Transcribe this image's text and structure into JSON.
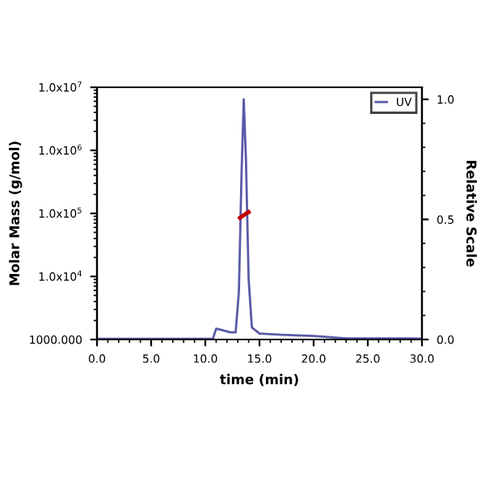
{
  "chart_data": {
    "type": "line",
    "xlabel": "time (min)",
    "ylabel": "Molar Mass (g/mol)",
    "y2label": "Relative Scale",
    "xlim": [
      0,
      30
    ],
    "xticks": [
      {
        "value": 0,
        "label": "0.0"
      },
      {
        "value": 5,
        "label": "5.0"
      },
      {
        "value": 10,
        "label": "10.0"
      },
      {
        "value": 15,
        "label": "15.0"
      },
      {
        "value": 20,
        "label": "20.0"
      },
      {
        "value": 25,
        "label": "25.0"
      },
      {
        "value": 30,
        "label": "30.0"
      }
    ],
    "log": "y",
    "ylim": [
      1000,
      10000000
    ],
    "yticks": [
      {
        "value": 1000,
        "label": "1000.000"
      },
      {
        "value": 10000,
        "label": "1.0x10$^{4}$"
      },
      {
        "value": 100000,
        "label": "1.0x10$^{5}$"
      },
      {
        "value": 1000000,
        "label": "1.0x10$^{6}$"
      },
      {
        "value": 10000000,
        "label": "1.0x10$^{7}$"
      }
    ],
    "y2lim": [
      0,
      1.05
    ],
    "y2ticks": [
      {
        "value": 0,
        "label": "0.0"
      },
      {
        "value": 0.5,
        "label": "0.5"
      },
      {
        "value": 1,
        "label": "1.0"
      }
    ],
    "grid": false,
    "legend": "top right",
    "marker": "none",
    "line_style": "solid",
    "series": [
      {
        "name": "UV",
        "color": "#5a5aa8",
        "axis": "y2",
        "x": [
          0,
          10.7,
          11.0,
          11.5,
          12.3,
          12.8,
          13.1,
          13.35,
          13.55,
          13.75,
          14.0,
          14.3,
          15,
          17,
          20,
          23,
          25,
          30
        ],
        "values": [
          0.003,
          0.003,
          0.045,
          0.04,
          0.03,
          0.03,
          0.2,
          0.7,
          1.0,
          0.75,
          0.25,
          0.05,
          0.025,
          0.02,
          0.015,
          0.005,
          0.005,
          0.004
        ]
      },
      {
        "color": "#c00000",
        "x": [
          13.2,
          13.4,
          13.6,
          13.8,
          14.0
        ],
        "values": [
          85000,
          90000,
          95000,
          100000,
          105000
        ]
      }
    ]
  }
}
